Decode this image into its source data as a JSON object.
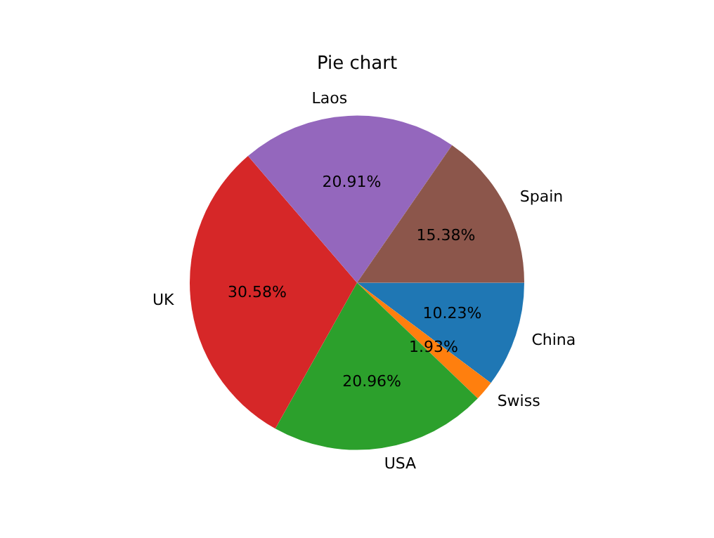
{
  "chart_data": {
    "type": "pie",
    "title": "Pie chart",
    "categories": [
      "China",
      "Swiss",
      "USA",
      "UK",
      "Laos",
      "Spain"
    ],
    "values": [
      10.23,
      1.93,
      20.96,
      30.58,
      20.91,
      15.38
    ],
    "colors": [
      "#1f77b4",
      "#ff7f0e",
      "#2ca02c",
      "#d62728",
      "#9467bd",
      "#8c564b"
    ],
    "value_labels": [
      "10.23%",
      "1.93%",
      "20.96%",
      "30.58%",
      "20.91%",
      "15.38%"
    ],
    "legend": false
  }
}
